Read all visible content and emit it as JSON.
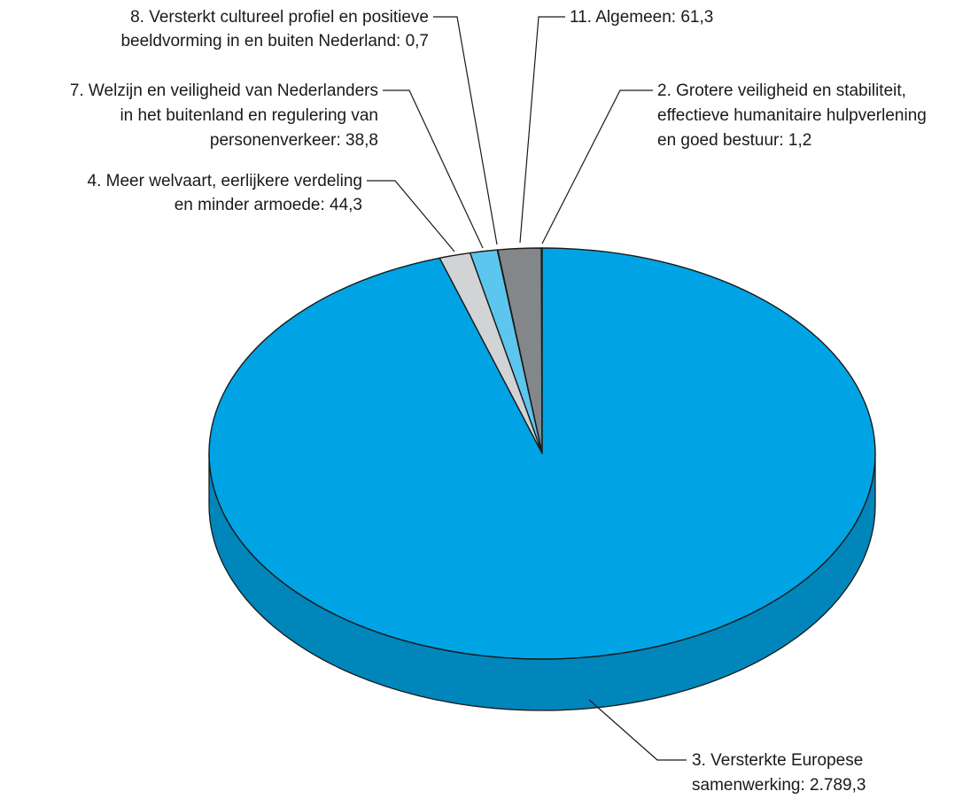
{
  "chart_data": {
    "type": "pie",
    "style": "3d",
    "start_angle_deg": 0,
    "direction": "counterclockwise",
    "slices": [
      {
        "name": "2. Grotere veiligheid en stabiliteit, effectieve humanitaire hulpverlening en goed bestuur",
        "value": 1.2,
        "color": "#00a4e4",
        "label_lines": [
          "2. Grotere veiligheid en stabiliteit,",
          "effectieve humanitaire hulpverlening",
          "en goed bestuur: 1,2"
        ]
      },
      {
        "name": "11. Algemeen",
        "value": 61.3,
        "color": "#84878a",
        "label_lines": [
          "11. Algemeen: 61,3"
        ]
      },
      {
        "name": "8. Versterkt cultureel profiel en positieve beeldvorming in en buiten Nederland",
        "value": 0.7,
        "color": "#a7a9ac",
        "label_lines": [
          "8. Versterkt cultureel profiel en positieve",
          "beeldvorming in en buiten Nederland: 0,7"
        ]
      },
      {
        "name": "7. Welzijn en veiligheid van Nederlanders in het buitenland en regulering van personenverkeer",
        "value": 38.8,
        "color": "#5cc6ee",
        "label_lines": [
          "7. Welzijn en veiligheid van Nederlanders",
          "in het buitenland en regulering van",
          "personenverkeer: 38,8"
        ]
      },
      {
        "name": "4. Meer welvaart, eerlijkere verdeling en minder armoede",
        "value": 44.3,
        "color": "#d2d3d5",
        "label_lines": [
          "4. Meer welvaart, eerlijkere verdeling",
          "en minder armoede: 44,3"
        ]
      },
      {
        "name": "3. Versterkte Europese samenwerking",
        "value": 2789.3,
        "color": "#00a4e4",
        "label_lines": [
          "3. Versterkte Europese",
          "samenwerking: 2.789,3"
        ]
      }
    ]
  }
}
